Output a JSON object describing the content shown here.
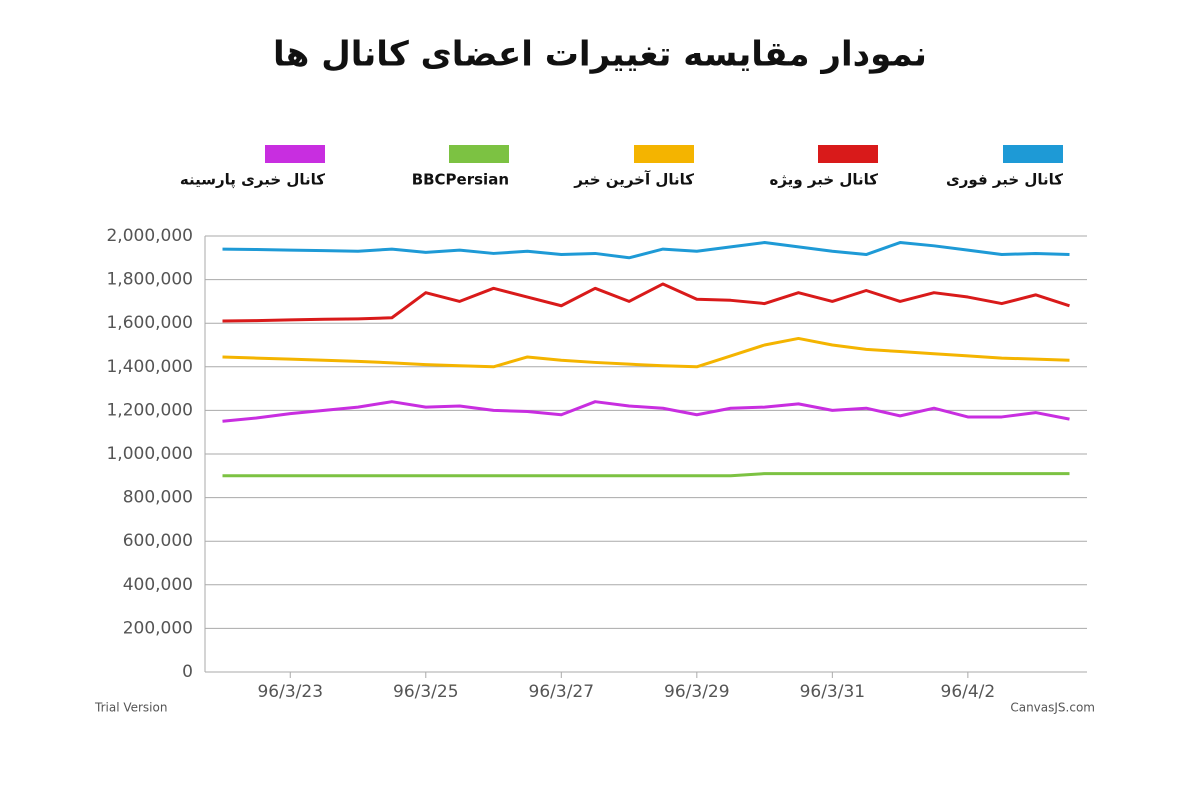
{
  "chart_data": {
    "type": "line",
    "title": "نمودار مقایسه تغییرات اعضای کانال ها",
    "categories": [
      null,
      null,
      "96/3/23",
      null,
      null,
      null,
      "96/3/25",
      null,
      null,
      null,
      "96/3/27",
      null,
      null,
      null,
      "96/3/29",
      null,
      null,
      null,
      "96/3/31",
      null,
      null,
      null,
      "96/4/2",
      null,
      null,
      null
    ],
    "series": [
      {
        "name": "کانال خبر فوری",
        "color": "#1e9ad6",
        "values": [
          1940000,
          1938000,
          1935000,
          1933000,
          1930000,
          1940000,
          1925000,
          1935000,
          1920000,
          1930000,
          1915000,
          1920000,
          1900000,
          1940000,
          1930000,
          1950000,
          1970000,
          1950000,
          1930000,
          1915000,
          1970000,
          1955000,
          1935000,
          1915000,
          1920000,
          1915000
        ]
      },
      {
        "name": "کانال خبر ویژه",
        "color": "#d91a1a",
        "values": [
          1610000,
          1612000,
          1615000,
          1618000,
          1620000,
          1625000,
          1740000,
          1700000,
          1760000,
          1720000,
          1680000,
          1760000,
          1700000,
          1780000,
          1710000,
          1705000,
          1690000,
          1740000,
          1700000,
          1750000,
          1700000,
          1740000,
          1720000,
          1690000,
          1730000,
          1680000
        ]
      },
      {
        "name": "کانال آخرین خبر",
        "color": "#f4b400",
        "values": [
          1445000,
          1440000,
          1435000,
          1430000,
          1425000,
          1418000,
          1410000,
          1405000,
          1400000,
          1445000,
          1430000,
          1420000,
          1412000,
          1405000,
          1400000,
          1450000,
          1500000,
          1530000,
          1500000,
          1480000,
          1470000,
          1460000,
          1450000,
          1440000,
          1435000,
          1430000
        ]
      },
      {
        "name": "BBCPersian",
        "color": "#7cc242",
        "values": [
          900000,
          900000,
          900000,
          900000,
          900000,
          900000,
          900000,
          900000,
          900000,
          900000,
          900000,
          900000,
          900000,
          900000,
          900000,
          900000,
          910000,
          910000,
          910000,
          910000,
          910000,
          910000,
          910000,
          910000,
          910000,
          910000
        ]
      },
      {
        "name": "کانال خبری پارسینه",
        "color": "#c82ee0",
        "values": [
          1150000,
          1165000,
          1185000,
          1200000,
          1215000,
          1240000,
          1215000,
          1220000,
          1200000,
          1195000,
          1180000,
          1240000,
          1220000,
          1210000,
          1180000,
          1210000,
          1215000,
          1230000,
          1200000,
          1210000,
          1175000,
          1210000,
          1170000,
          1170000,
          1190000,
          1160000
        ]
      }
    ],
    "ylim": [
      0,
      2000000
    ],
    "yticks": [
      0,
      {
        "value": 200000,
        "label": "200,000"
      },
      {
        "value": 400000,
        "label": "400,000"
      },
      {
        "value": 600000,
        "label": "600,000"
      },
      {
        "value": 800000,
        "label": "800,000"
      },
      {
        "value": 1000000,
        "label": "1,000,000"
      },
      {
        "value": 1200000,
        "label": "1,200,000"
      },
      {
        "value": 1400000,
        "label": "1,400,000"
      },
      {
        "value": 1600000,
        "label": "1,600,000"
      },
      {
        "value": 1800000,
        "label": "1,800,000"
      },
      {
        "value": 2000000,
        "label": "2,000,000"
      }
    ],
    "grid": true,
    "legend_position": "top",
    "annotations": [
      "Trial Version",
      "CanvasJS.com"
    ]
  }
}
